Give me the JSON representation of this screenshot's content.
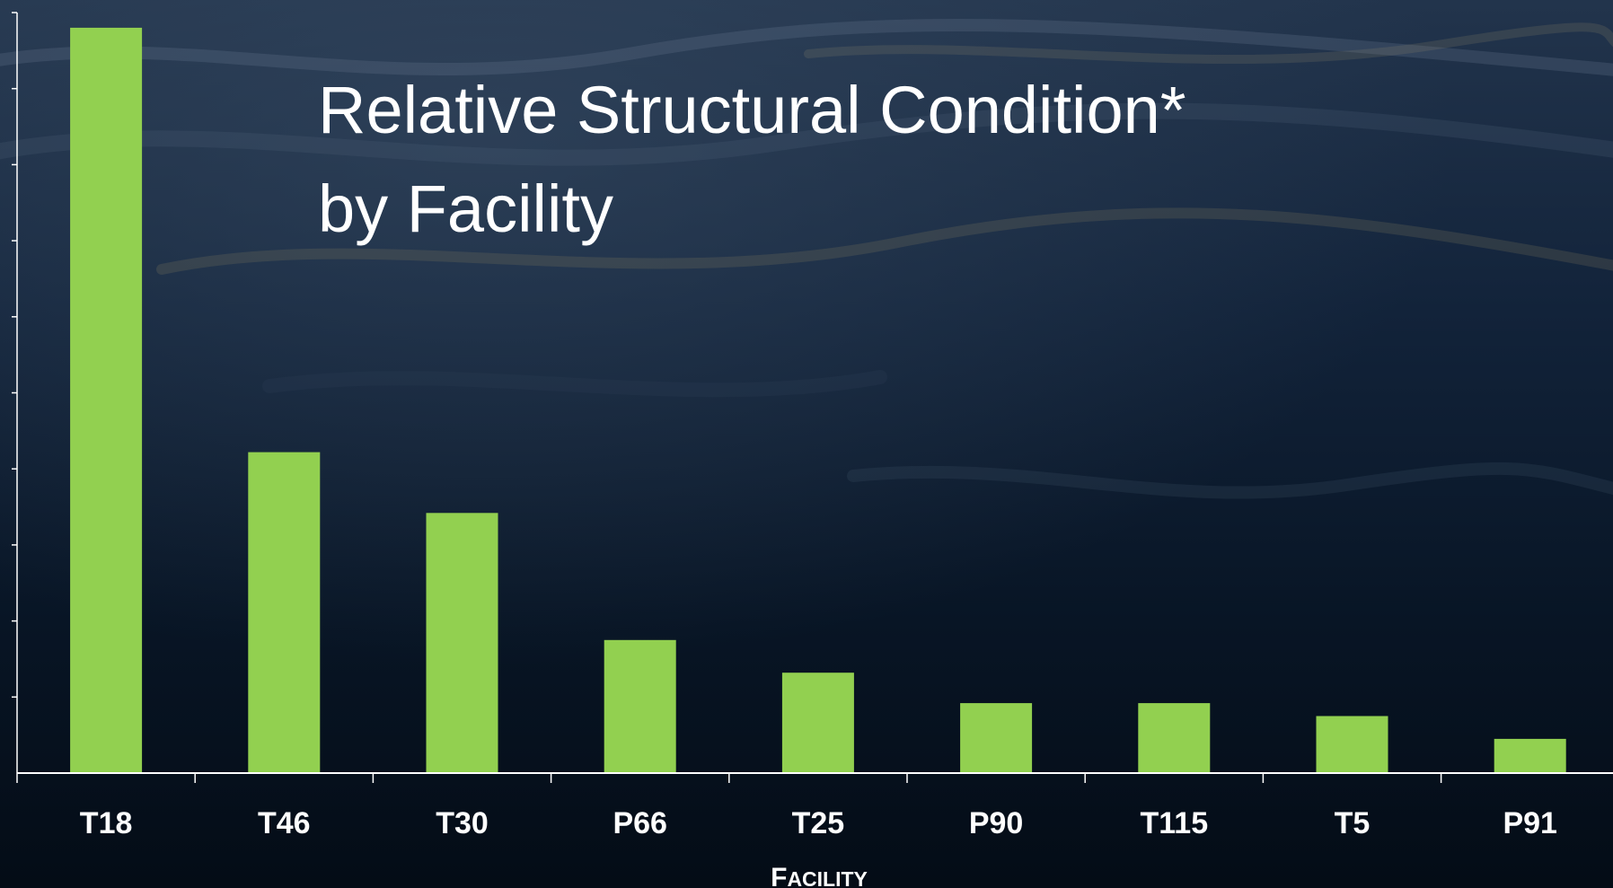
{
  "chart_data": {
    "type": "bar",
    "title_line1": "Relative Structural Condition*",
    "title_line2": "by Facility",
    "xlabel": "Facility",
    "ylabel": "",
    "categories": [
      "T18",
      "T46",
      "T30",
      "P66",
      "T25",
      "P90",
      "T115",
      "T5",
      "P91"
    ],
    "values": [
      9.8,
      4.22,
      3.42,
      1.75,
      1.32,
      0.92,
      0.92,
      0.75,
      0.45
    ],
    "ylim": [
      0,
      10
    ],
    "grid": false,
    "legend": "none",
    "bar_color": "#92d050",
    "axis_color": "#ffffff"
  }
}
